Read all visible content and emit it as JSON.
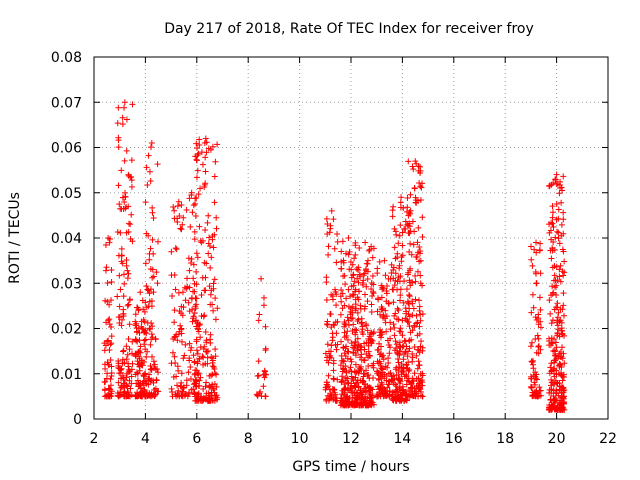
{
  "chart_data": {
    "type": "scatter",
    "title": "Day 217 of 2018, Rate Of TEC Index for receiver froy",
    "xlabel": "GPS time / hours",
    "ylabel": "ROTI / TECUs",
    "xlim": [
      2,
      22
    ],
    "ylim": [
      0,
      0.08
    ],
    "xticks": [
      2,
      4,
      6,
      8,
      10,
      12,
      14,
      16,
      18,
      20,
      22
    ],
    "yticks": [
      0,
      0.01,
      0.02,
      0.03,
      0.04,
      0.05,
      0.06,
      0.07,
      0.08
    ],
    "xtick_labels": [
      "2",
      "4",
      "6",
      "8",
      "10",
      "12",
      "14",
      "16",
      "18",
      "20",
      "22"
    ],
    "ytick_labels": [
      "0",
      "0.01",
      "0.02",
      "0.03",
      "0.04",
      "0.05",
      "0.06",
      "0.07",
      "0.08"
    ],
    "grid": true,
    "marker": "+",
    "color": "#ff0000",
    "clusters": [
      {
        "x": [
          2.4,
          2.7
        ],
        "y": [
          0.005,
          0.04
        ],
        "n": 60
      },
      {
        "x": [
          2.9,
          3.5
        ],
        "y": [
          0.005,
          0.07
        ],
        "n": 150
      },
      {
        "x": [
          3.6,
          4.0
        ],
        "y": [
          0.005,
          0.028
        ],
        "n": 110
      },
      {
        "x": [
          4.0,
          4.5
        ],
        "y": [
          0.005,
          0.061
        ],
        "n": 100
      },
      {
        "x": [
          5.0,
          5.6
        ],
        "y": [
          0.005,
          0.048
        ],
        "n": 80
      },
      {
        "x": [
          5.6,
          6.0
        ],
        "y": [
          0.005,
          0.05
        ],
        "n": 60
      },
      {
        "x": [
          5.9,
          6.8
        ],
        "y": [
          0.004,
          0.062
        ],
        "n": 210
      },
      {
        "x": [
          8.3,
          8.7
        ],
        "y": [
          0.005,
          0.031
        ],
        "n": 25
      },
      {
        "x": [
          11.0,
          11.5
        ],
        "y": [
          0.004,
          0.046
        ],
        "n": 90
      },
      {
        "x": [
          11.6,
          12.2
        ],
        "y": [
          0.003,
          0.04
        ],
        "n": 220
      },
      {
        "x": [
          12.2,
          12.9
        ],
        "y": [
          0.003,
          0.039
        ],
        "n": 220
      },
      {
        "x": [
          13.0,
          13.6
        ],
        "y": [
          0.005,
          0.035
        ],
        "n": 140
      },
      {
        "x": [
          13.6,
          14.3
        ],
        "y": [
          0.004,
          0.049
        ],
        "n": 200
      },
      {
        "x": [
          14.2,
          14.8
        ],
        "y": [
          0.005,
          0.057
        ],
        "n": 160
      },
      {
        "x": [
          19.0,
          19.4
        ],
        "y": [
          0.005,
          0.039
        ],
        "n": 80
      },
      {
        "x": [
          19.7,
          20.3
        ],
        "y": [
          0.002,
          0.054
        ],
        "n": 280
      }
    ]
  }
}
